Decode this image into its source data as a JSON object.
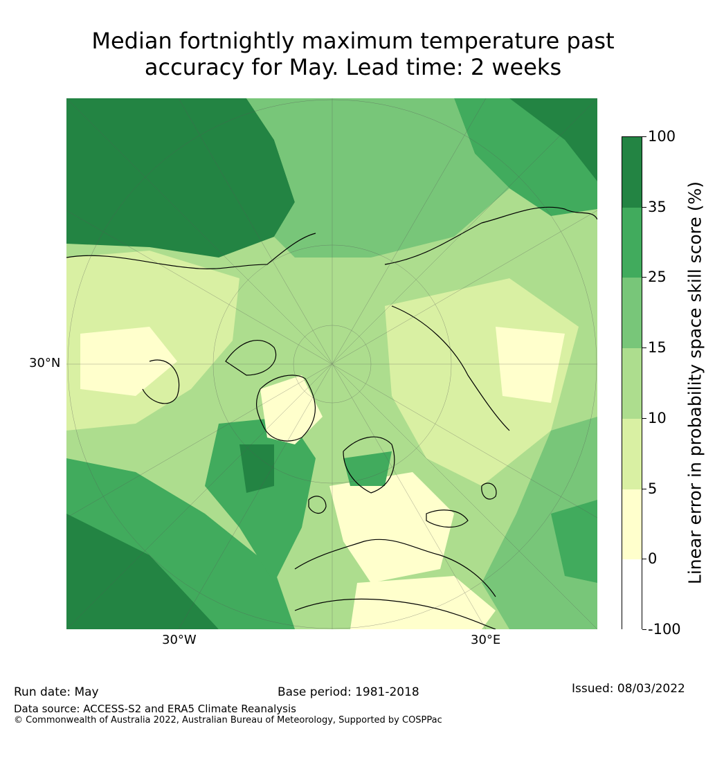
{
  "title": {
    "line1": "Median fortnightly maximum temperature past",
    "line2": "accuracy for May. Lead time: 2 weeks"
  },
  "map": {
    "lat_label": "30°N",
    "lon_labels": [
      "30°W",
      "30°E"
    ],
    "colors": {
      "band_100": "#238443",
      "band_35": "#41ab5d",
      "band_25": "#78c679",
      "band_15": "#addd8e",
      "band_10": "#d9f0a3",
      "band_5": "#ffffcc",
      "band_0": "#ffffff",
      "coastline": "#000000"
    }
  },
  "colorbar": {
    "title": "Linear error in probability space skill score (%)",
    "ticks": [
      "100",
      "35",
      "25",
      "15",
      "10",
      "5",
      "0",
      "-100"
    ],
    "colors": [
      "#238443",
      "#41ab5d",
      "#78c679",
      "#addd8e",
      "#d9f0a3",
      "#ffffcc",
      "#ffffff"
    ]
  },
  "footer": {
    "run_date": "Run date: May",
    "base_period": "Base period: 1981-2018",
    "issued": "Issued: 08/03/2022",
    "data_source": "Data source: ACCESS-S2 and ERA5 Climate Reanalysis",
    "copyright": "© Commonwealth of Australia 2022, Australian Bureau of Meteorology, Supported by COSPPac"
  }
}
